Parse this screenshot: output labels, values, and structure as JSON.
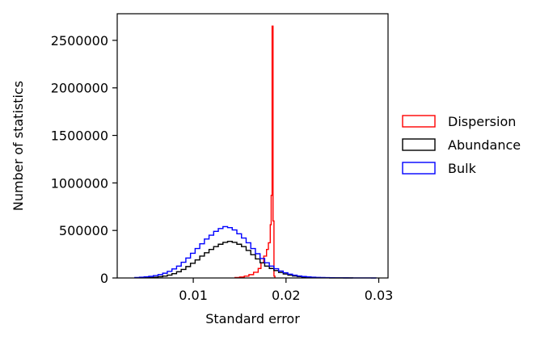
{
  "chart_data": {
    "type": "histogram",
    "xlabel": "Standard error",
    "ylabel": "Number of statistics",
    "xlim": [
      0.0018,
      0.031
    ],
    "ylim": [
      0,
      2780000
    ],
    "x_ticks": [
      0.01,
      0.02,
      0.03
    ],
    "x_tick_labels": [
      "0.01",
      "0.02",
      "0.03"
    ],
    "y_ticks": [
      0,
      500000,
      1000000,
      1500000,
      2000000,
      2500000
    ],
    "y_tick_labels": [
      "0",
      "500000",
      "1000000",
      "1500000",
      "2000000",
      "2500000"
    ],
    "grid": false,
    "legend_position": "outside-right",
    "histtype": "step",
    "series": [
      {
        "name": "Dispersion",
        "color": "#ff0000",
        "bin_edges": [
          0.0145,
          0.015,
          0.0155,
          0.016,
          0.0165,
          0.017,
          0.0173,
          0.0176,
          0.0179,
          0.0181,
          0.0183,
          0.0184,
          0.0185,
          0.0186,
          0.0187,
          0.0188
        ],
        "counts": [
          5000,
          10000,
          20000,
          35000,
          60000,
          100000,
          160000,
          230000,
          300000,
          370000,
          560000,
          870000,
          2650000,
          600000,
          20000
        ]
      },
      {
        "name": "Abundance",
        "color": "#000000",
        "bin_edges": [
          0.0047,
          0.0052,
          0.0057,
          0.0062,
          0.0067,
          0.0072,
          0.0077,
          0.0082,
          0.0087,
          0.0092,
          0.0097,
          0.0102,
          0.0107,
          0.0112,
          0.0117,
          0.0122,
          0.0127,
          0.0132,
          0.0137,
          0.0142,
          0.0147,
          0.0152,
          0.0157,
          0.0162,
          0.0167,
          0.0172,
          0.0177,
          0.0182,
          0.0187,
          0.0192,
          0.0197,
          0.0202,
          0.0207,
          0.0212,
          0.0217,
          0.0222,
          0.0227,
          0.0232,
          0.0237,
          0.0242,
          0.0247,
          0.0252,
          0.0257,
          0.0262,
          0.0267,
          0.0272
        ],
        "counts": [
          3000,
          5000,
          8000,
          13000,
          20000,
          30000,
          45000,
          65000,
          90000,
          120000,
          155000,
          190000,
          230000,
          265000,
          300000,
          330000,
          355000,
          375000,
          385000,
          375000,
          355000,
          330000,
          290000,
          245000,
          200000,
          160000,
          125000,
          100000,
          78000,
          58000,
          42000,
          30000,
          21000,
          15000,
          10000,
          7000,
          5000,
          3000,
          2000,
          1500,
          1000,
          800,
          500,
          300,
          200
        ]
      },
      {
        "name": "Bulk",
        "color": "#0000ff",
        "bin_edges": [
          0.0037,
          0.0042,
          0.0047,
          0.0052,
          0.0057,
          0.0062,
          0.0067,
          0.0072,
          0.0077,
          0.0082,
          0.0087,
          0.0092,
          0.0097,
          0.0102,
          0.0107,
          0.0112,
          0.0117,
          0.0122,
          0.0127,
          0.0132,
          0.0137,
          0.0142,
          0.0147,
          0.0152,
          0.0157,
          0.0162,
          0.0167,
          0.0172,
          0.0177,
          0.0182,
          0.0187,
          0.0192,
          0.0197,
          0.0202,
          0.0207,
          0.0212,
          0.0217,
          0.0222,
          0.0227,
          0.0232,
          0.0237,
          0.0242,
          0.0247,
          0.0252,
          0.0257,
          0.0262,
          0.0267,
          0.0272,
          0.0277,
          0.0282,
          0.0287,
          0.0292,
          0.0297
        ],
        "counts": [
          5000,
          8000,
          12000,
          17000,
          25000,
          35000,
          50000,
          70000,
          95000,
          125000,
          165000,
          210000,
          260000,
          310000,
          360000,
          410000,
          450000,
          490000,
          520000,
          540000,
          530000,
          505000,
          465000,
          420000,
          370000,
          310000,
          255000,
          205000,
          160000,
          125000,
          97000,
          73000,
          55000,
          40000,
          29000,
          21000,
          15000,
          11000,
          8000,
          6000,
          4500,
          3500,
          2500,
          1800,
          1300,
          1000,
          800,
          600,
          400,
          300,
          200,
          100
        ]
      }
    ]
  }
}
